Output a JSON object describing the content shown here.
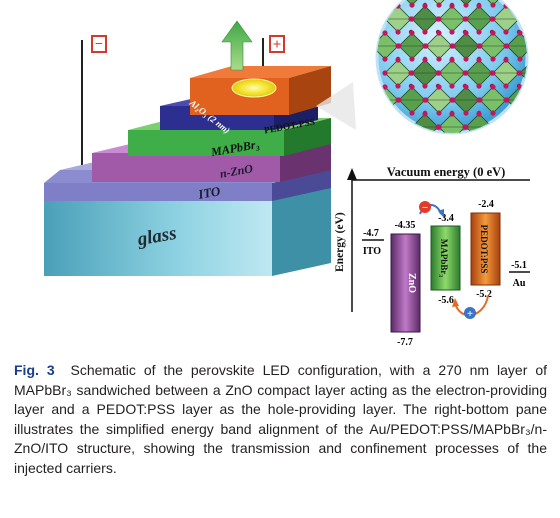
{
  "figure": {
    "layers": {
      "glass": "glass",
      "ito": "ITO",
      "zno": "n-ZnO",
      "mapbbr": "MAPbBr₃",
      "al2o3": "Al₂O₃ (2 nm)",
      "pedot": "PEDOT:PSS"
    },
    "electrodes": {
      "negative": "−",
      "positive": "+"
    },
    "energy_diagram": {
      "title": "Vacuum energy (0 eV)",
      "y_axis_label": "Energy (eV)",
      "ito": {
        "label": "ITO",
        "level": "-4.7"
      },
      "zno": {
        "label": "ZnO",
        "top": "-4.35",
        "bottom": "-7.7"
      },
      "mapbbr": {
        "label": "MAPbBr₃",
        "top": "-3.4",
        "bottom": "-5.6"
      },
      "pedot": {
        "label": "PEDOT:PSS",
        "top": "-2.4",
        "bottom": "-5.2"
      },
      "au": {
        "label": "Au",
        "level": "-5.1"
      },
      "electron_symbol": "−",
      "hole_symbol": "+"
    },
    "colors": {
      "glass": "#8fd3e3",
      "ito": "#7f7fc8",
      "zno": "#a05aa8",
      "mapbbr": "#3fae49",
      "al2o3": "#2c2f8f",
      "pedot": "#e0621e",
      "arrow": "#5fb84a"
    }
  },
  "caption": {
    "label": "Fig. 3",
    "text": "Schematic of the perovskite LED configuration, with a 270 nm layer of MAPbBr₃ sandwiched between a ZnO compact layer acting as the electron-providing layer and a PEDOT:PSS layer as the hole-providing layer. The right-bottom pane illustrates the simplified energy band alignment of the Au/PEDOT:PSS/MAPbBr₃/n-ZnO/ITO structure, showing the transmission and confinement processes of the injected carriers."
  }
}
